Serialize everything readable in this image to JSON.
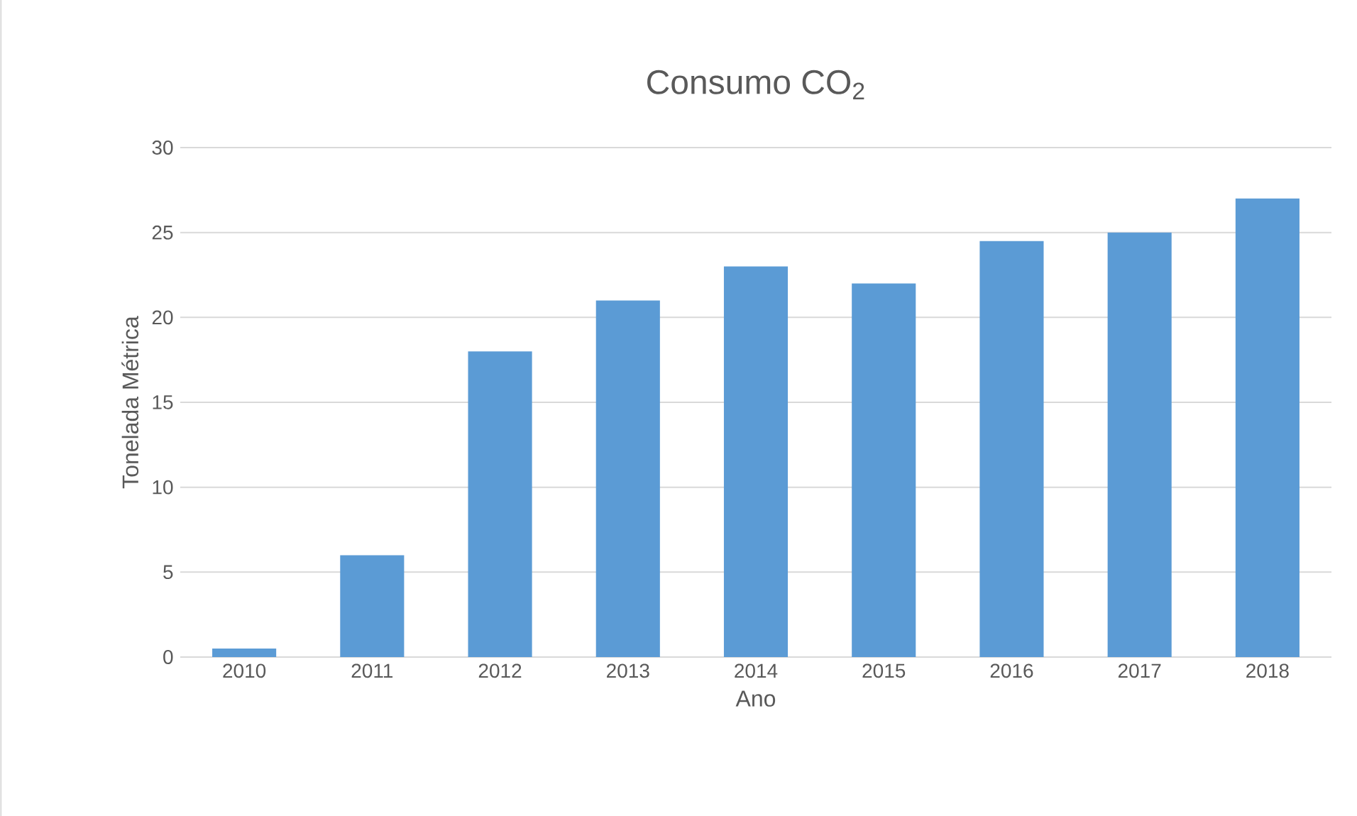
{
  "chart_data": {
    "type": "bar",
    "title": "Consumo CO$_{2}$",
    "xlabel": "Ano",
    "ylabel": "Tonelada Métrica",
    "categories": [
      "2010",
      "2011",
      "2012",
      "2013",
      "2014",
      "2015",
      "2016",
      "2017",
      "2018"
    ],
    "values": [
      0.5,
      6,
      18,
      21,
      23,
      22,
      24.5,
      25,
      27
    ],
    "color": "#5b9bd5",
    "ylim": [
      0,
      30
    ],
    "yticks": [
      0,
      5,
      10,
      15,
      20,
      25,
      30
    ],
    "grid": "y"
  }
}
